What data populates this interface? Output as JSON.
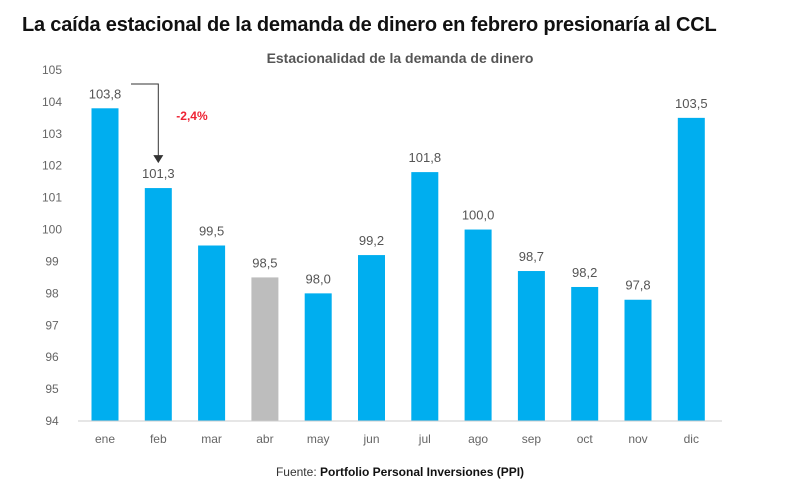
{
  "header": {
    "title": "La caída estacional de la demanda de dinero en febrero presionaría al CCL"
  },
  "chart_data": {
    "type": "bar",
    "title": "Estacionalidad de la demanda de dinero",
    "xlabel": "",
    "ylabel": "",
    "categories": [
      "ene",
      "feb",
      "mar",
      "abr",
      "may",
      "jun",
      "jul",
      "ago",
      "sep",
      "oct",
      "nov",
      "dic"
    ],
    "values": [
      103.8,
      101.3,
      99.5,
      98.5,
      98.0,
      99.2,
      101.8,
      100.0,
      98.7,
      98.2,
      97.8,
      103.5
    ],
    "value_labels": [
      "103,8",
      "101,3",
      "99,5",
      "98,5",
      "98,0",
      "99,2",
      "101,8",
      "100,0",
      "98,7",
      "98,2",
      "97,8",
      "103,5"
    ],
    "ylim": [
      94,
      105
    ],
    "yticks": [
      94,
      95,
      96,
      97,
      98,
      99,
      100,
      101,
      102,
      103,
      104,
      105
    ],
    "grid": false,
    "bar_color": "#00aeef",
    "highlight_color": "#bdbdbd",
    "highlight_index": 3,
    "annotation": {
      "text": "-2,4%",
      "from": "ene",
      "to": "feb",
      "color": "#ee2233"
    }
  },
  "footer": {
    "source_prefix": "Fuente: ",
    "source_name": "Portfolio Personal Inversiones (PPI)"
  }
}
